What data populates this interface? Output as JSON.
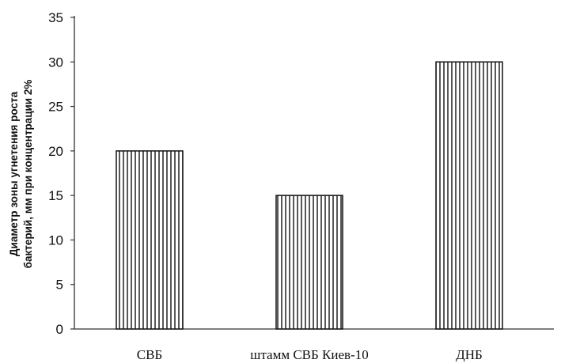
{
  "chart_data": {
    "type": "bar",
    "title": "",
    "xlabel": "",
    "ylabel_lines": [
      "Диаметр зоны угнетения роста",
      "бактерий, мм  при концентрации 2%"
    ],
    "categories": [
      "СВБ",
      "штамм СВБ Киев-10",
      "ДНБ"
    ],
    "values": [
      20,
      15,
      30
    ],
    "ylim": [
      0,
      35
    ],
    "yticks": [
      "0",
      "5",
      "10",
      "15",
      "20",
      "25",
      "30",
      "35"
    ],
    "yticks_values": [
      0,
      5,
      10,
      15,
      20,
      25,
      30,
      35
    ],
    "grid": false,
    "bar_pattern": "vertical-stripes",
    "colors": {
      "stroke": "#111111",
      "fill": "#ffffff",
      "axis": "#333333"
    }
  }
}
